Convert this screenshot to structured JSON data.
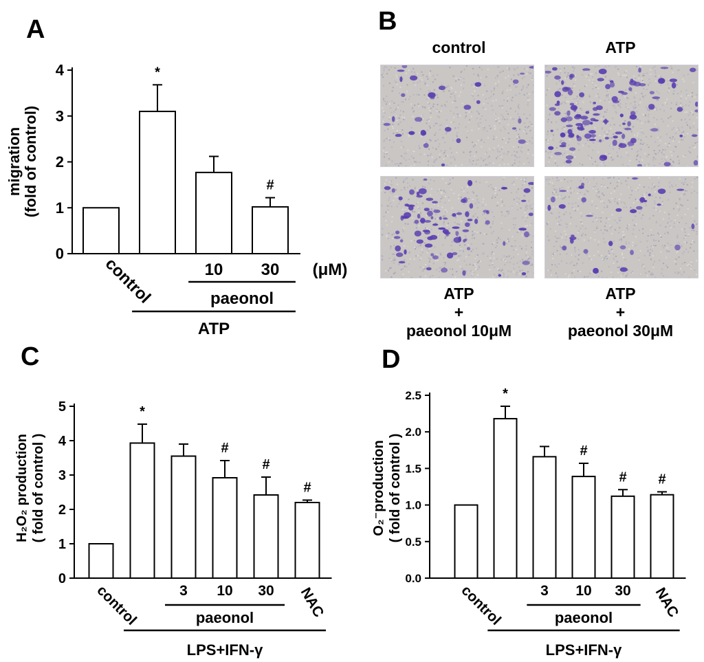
{
  "panels": {
    "A": {
      "letter": "A"
    },
    "B": {
      "letter": "B"
    },
    "C": {
      "letter": "C"
    },
    "D": {
      "letter": "D"
    }
  },
  "chart_data": [
    {
      "id": "A",
      "type": "bar",
      "categories": [
        "control",
        "ATP",
        "ATP+paeonol 10",
        "ATP+paeonol 30"
      ],
      "values": [
        1.0,
        3.1,
        1.77,
        1.02
      ],
      "errors": [
        0,
        0.58,
        0.35,
        0.2
      ],
      "annotations": [
        "",
        "*",
        "",
        "#"
      ],
      "tick_labels": [
        "control",
        "",
        "10",
        "30"
      ],
      "unit_label": "(μM)",
      "group_labels": [
        {
          "text": "paeonol",
          "from": 2,
          "to": 3
        },
        {
          "text": "ATP",
          "from": 1,
          "to": 3
        }
      ],
      "ylabel": [
        "migration",
        "(fold of control)"
      ],
      "ylim": [
        0,
        4
      ],
      "yticks": [
        "0",
        "1",
        "2",
        "3",
        "4"
      ],
      "grid": false,
      "bar_color": "#ffffff"
    },
    {
      "id": "C",
      "type": "bar",
      "categories": [
        "control",
        "LPS+IFN-γ",
        "paeonol 3",
        "paeonol 10",
        "paeonol 30",
        "NAC"
      ],
      "values": [
        1.0,
        3.93,
        3.55,
        2.92,
        2.42,
        2.2
      ],
      "errors": [
        0,
        0.55,
        0.35,
        0.5,
        0.52,
        0.07
      ],
      "annotations": [
        "",
        "*",
        "",
        "#",
        "#",
        "#"
      ],
      "tick_labels": [
        "control",
        "",
        "3",
        "10",
        "30",
        "NAC"
      ],
      "group_labels": [
        {
          "text": "paeonol",
          "from": 2,
          "to": 4
        },
        {
          "text": "LPS+IFN-γ",
          "from": 1,
          "to": 5
        }
      ],
      "ylabel": [
        "H₂O₂ production",
        "( fold of control )"
      ],
      "ylim": [
        0,
        5
      ],
      "yticks": [
        "0",
        "1",
        "2",
        "3",
        "4",
        "5"
      ],
      "grid": false,
      "bar_color": "#ffffff"
    },
    {
      "id": "D",
      "type": "bar",
      "categories": [
        "control",
        "LPS+IFN-γ",
        "paeonol 3",
        "paeonol 10",
        "paeonol 30",
        "NAC"
      ],
      "values": [
        1.0,
        2.18,
        1.66,
        1.39,
        1.12,
        1.14
      ],
      "errors": [
        0,
        0.17,
        0.14,
        0.18,
        0.09,
        0.04
      ],
      "annotations": [
        "",
        "*",
        "",
        "#",
        "#",
        "#"
      ],
      "tick_labels": [
        "control",
        "",
        "3",
        "10",
        "30",
        "NAC"
      ],
      "group_labels": [
        {
          "text": "paeonol",
          "from": 2,
          "to": 4
        },
        {
          "text": "LPS+IFN-γ",
          "from": 1,
          "to": 5
        }
      ],
      "ylabel": [
        "O₂⁻production",
        "( fold of control )"
      ],
      "ylim": [
        0,
        2.5
      ],
      "yticks": [
        "0.0",
        "0.5",
        "1.0",
        "1.5",
        "2.0",
        "2.5"
      ],
      "grid": false,
      "bar_color": "#ffffff"
    }
  ],
  "photos": {
    "control": {
      "label": "control"
    },
    "atp": {
      "label": "ATP"
    },
    "atp_p10": {
      "label_line1": "ATP",
      "label_line2": "+",
      "label_line3": "paeonol 10μM"
    },
    "atp_p30": {
      "label_line1": "ATP",
      "label_line2": "+",
      "label_line3": "paeonol 30μM"
    }
  },
  "colors": {
    "micrograph_background": "#c9c6c4",
    "cell_stain": "#5a3fb0"
  }
}
